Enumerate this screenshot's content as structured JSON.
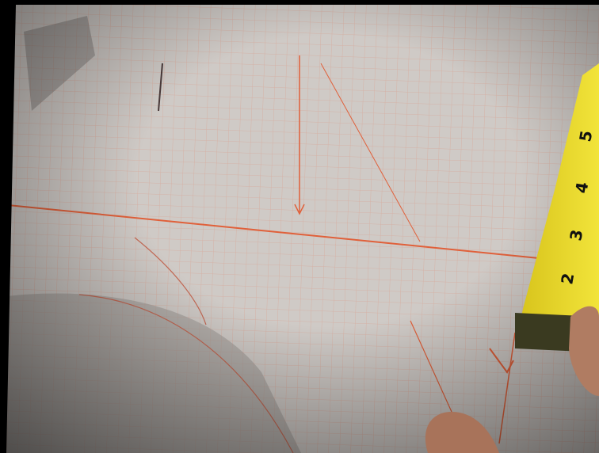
{
  "tape_measure": {
    "numbers": [
      "5",
      "4",
      "3",
      "2"
    ]
  }
}
